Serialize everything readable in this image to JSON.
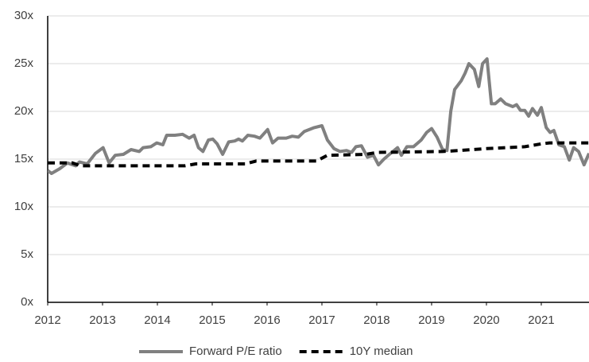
{
  "chart_data": {
    "type": "line",
    "xlim": [
      2012,
      2021.87
    ],
    "xticks": [
      2012,
      2013,
      2014,
      2015,
      2016,
      2017,
      2018,
      2019,
      2020,
      2021
    ],
    "ylim": [
      0,
      30
    ],
    "yticks": [
      {
        "value": 0,
        "label": "0x"
      },
      {
        "value": 5,
        "label": "5x"
      },
      {
        "value": 10,
        "label": "10x"
      },
      {
        "value": 15,
        "label": "15x"
      },
      {
        "value": 20,
        "label": "20x"
      },
      {
        "value": 25,
        "label": "25x"
      },
      {
        "value": 30,
        "label": "30x"
      }
    ],
    "grid": true,
    "legend": "bottom",
    "series": [
      {
        "name": "Forward P/E ratio",
        "color": "#808080",
        "style": "solid",
        "x": [
          2012.0,
          2012.07,
          2012.22,
          2012.36,
          2012.51,
          2012.58,
          2012.72,
          2012.87,
          2013.01,
          2013.12,
          2013.23,
          2013.38,
          2013.52,
          2013.67,
          2013.74,
          2013.88,
          2013.99,
          2014.1,
          2014.17,
          2014.32,
          2014.46,
          2014.58,
          2014.67,
          2014.75,
          2014.83,
          2014.93,
          2015.01,
          2015.09,
          2015.19,
          2015.3,
          2015.41,
          2015.48,
          2015.55,
          2015.65,
          2015.77,
          2015.87,
          2016.01,
          2016.1,
          2016.2,
          2016.35,
          2016.46,
          2016.57,
          2016.68,
          2016.86,
          2017.0,
          2017.1,
          2017.22,
          2017.33,
          2017.45,
          2017.54,
          2017.62,
          2017.72,
          2017.83,
          2017.94,
          2018.03,
          2018.13,
          2018.23,
          2018.38,
          2018.45,
          2018.55,
          2018.67,
          2018.81,
          2018.91,
          2019.0,
          2019.1,
          2019.2,
          2019.28,
          2019.35,
          2019.42,
          2019.54,
          2019.61,
          2019.68,
          2019.78,
          2019.86,
          2019.93,
          2020.01,
          2020.09,
          2020.16,
          2020.26,
          2020.35,
          2020.48,
          2020.55,
          2020.62,
          2020.7,
          2020.77,
          2020.84,
          2020.93,
          2021.0,
          2021.09,
          2021.16,
          2021.23,
          2021.32,
          2021.42,
          2021.51,
          2021.59,
          2021.68,
          2021.78,
          2021.87
        ],
        "values": [
          13.8,
          13.5,
          14.0,
          14.6,
          14.3,
          14.7,
          14.5,
          15.6,
          16.2,
          14.6,
          15.4,
          15.5,
          16.0,
          15.8,
          16.2,
          16.3,
          16.7,
          16.5,
          17.5,
          17.5,
          17.6,
          17.2,
          17.5,
          16.2,
          15.8,
          17.0,
          17.1,
          16.6,
          15.5,
          16.8,
          16.9,
          17.1,
          16.9,
          17.5,
          17.4,
          17.2,
          18.1,
          16.7,
          17.2,
          17.2,
          17.4,
          17.3,
          17.9,
          18.3,
          18.5,
          17.0,
          16.1,
          15.8,
          15.9,
          15.7,
          16.3,
          16.4,
          15.2,
          15.4,
          14.4,
          15.0,
          15.5,
          16.2,
          15.4,
          16.3,
          16.3,
          17.0,
          17.8,
          18.2,
          17.3,
          16.0,
          15.9,
          20.0,
          22.3,
          23.2,
          24.0,
          25.0,
          24.4,
          22.6,
          25.0,
          25.5,
          20.8,
          20.8,
          21.3,
          20.8,
          20.5,
          20.7,
          20.1,
          20.1,
          19.5,
          20.3,
          19.6,
          20.4,
          18.3,
          17.8,
          18.0,
          16.5,
          16.3,
          14.9,
          16.2,
          15.8,
          14.4,
          15.6
        ]
      },
      {
        "name": "10Y median",
        "color": "#000000",
        "style": "dashed",
        "x": [
          2012.0,
          2012.45,
          2012.6,
          2014.5,
          2014.7,
          2015.6,
          2015.8,
          2016.9,
          2017.1,
          2017.8,
          2018.0,
          2019.2,
          2019.5,
          2020.0,
          2020.7,
          2021.0,
          2021.15,
          2021.87
        ],
        "values": [
          14.6,
          14.6,
          14.3,
          14.3,
          14.5,
          14.5,
          14.8,
          14.8,
          15.4,
          15.5,
          15.7,
          15.8,
          15.9,
          16.1,
          16.3,
          16.6,
          16.7,
          16.7
        ]
      }
    ]
  }
}
